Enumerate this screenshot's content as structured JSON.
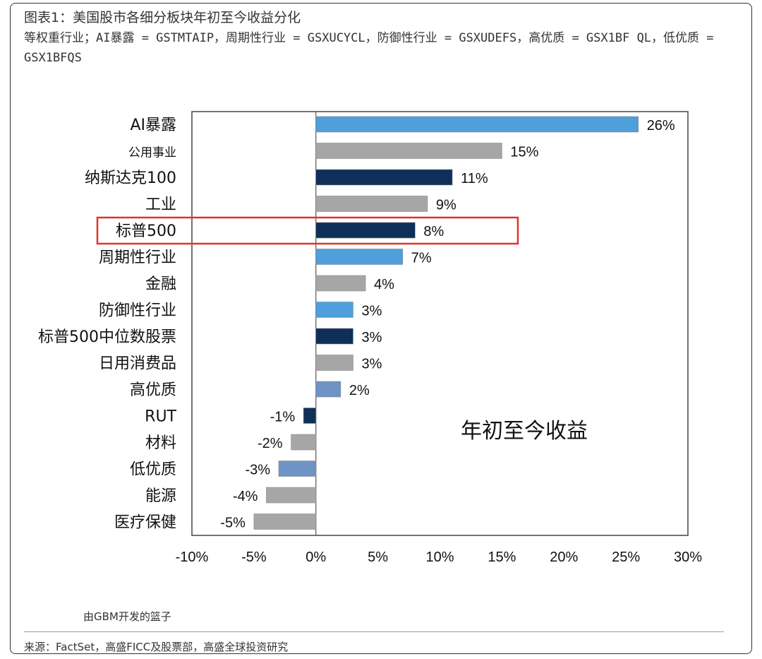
{
  "header": {
    "title": "图表1：美国股市各细分板块年初至今收益分化",
    "subtitle": "等权重行业；AI暴露 = GSTMTAIP，周期性行业 = GSXUCYCL，防御性行业 = GSXUDEFS，高优质 = GSX1BF QL，低优质 = GSX1BFQS"
  },
  "footer": {
    "note": "由GBM开发的篮子",
    "source": "来源：FactSet，高盛FICC及股票部，高盛全球投资研究"
  },
  "colors": {
    "light_blue": "#4e9fdc",
    "gray": "#a6a6a6",
    "navy": "#0e2f57",
    "steel_blue": "#6f93c4",
    "highlight": "#e0332b"
  },
  "chart_data": {
    "type": "bar",
    "orientation": "horizontal",
    "annotation": "年初至今收益",
    "categories": [
      "AI暴露",
      "公用事业",
      "纳斯达克100",
      "工业",
      "标普500",
      "周期性行业",
      "金融",
      "防御性行业",
      "标普500中位数股票",
      "日用消费品",
      "高优质",
      "RUT",
      "材料",
      "低优质",
      "能源",
      "医疗保健"
    ],
    "values": [
      26,
      15,
      11,
      9,
      8,
      7,
      4,
      3,
      3,
      3,
      2,
      -1,
      -2,
      -3,
      -4,
      -5
    ],
    "value_labels": [
      "26%",
      "15%",
      "11%",
      "9%",
      "8%",
      "7%",
      "4%",
      "3%",
      "3%",
      "3%",
      "2%",
      "-1%",
      "-2%",
      "-3%",
      "-4%",
      "-5%"
    ],
    "bar_colors": [
      "light_blue",
      "gray",
      "navy",
      "gray",
      "navy",
      "light_blue",
      "gray",
      "light_blue",
      "navy",
      "gray",
      "steel_blue",
      "navy",
      "gray",
      "steel_blue",
      "gray",
      "gray"
    ],
    "highlighted_category": "标普500",
    "xlim": [
      -10,
      30
    ],
    "x_ticks": [
      -10,
      -5,
      0,
      5,
      10,
      15,
      20,
      25,
      30
    ],
    "x_tick_labels": [
      "-10%",
      "-5%",
      "0%",
      "5%",
      "10%",
      "15%",
      "20%",
      "25%",
      "30%"
    ],
    "grid": false
  }
}
